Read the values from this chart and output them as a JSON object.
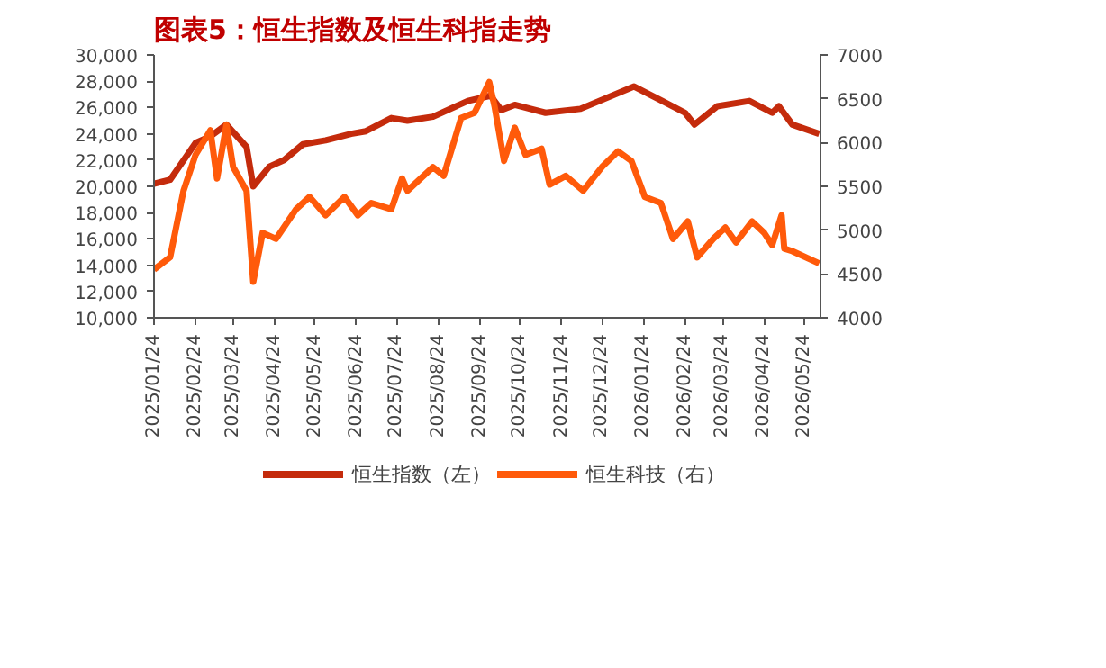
{
  "chart_data": {
    "type": "line",
    "title": "图表5：恒生指数及恒生科指走势",
    "x": [
      "2025-01-24",
      "2025-02-05",
      "2025-02-24",
      "2025-03-07",
      "2025-03-19",
      "2025-04-03",
      "2025-04-08",
      "2025-04-20",
      "2025-05-01",
      "2025-05-15",
      "2025-06-01",
      "2025-06-20",
      "2025-07-01",
      "2025-07-20",
      "2025-08-01",
      "2025-08-20",
      "2025-09-15",
      "2025-10-02",
      "2025-10-10",
      "2025-10-20",
      "2025-11-12",
      "2025-12-08",
      "2026-01-17",
      "2026-02-07",
      "2026-02-24",
      "2026-03-03",
      "2026-03-20",
      "2026-04-13",
      "2026-04-30",
      "2026-05-05",
      "2026-05-15",
      "2026-06-04"
    ],
    "series": [
      {
        "name": "恒生指数（左）",
        "color": "#c42b0c",
        "values": [
          20200,
          20500,
          23300,
          23800,
          24700,
          23000,
          20000,
          21500,
          22000,
          23200,
          23500,
          24000,
          24200,
          25200,
          25000,
          25300,
          26500,
          26900,
          25800,
          26200,
          25600,
          25900,
          27600,
          26500,
          25600,
          24700,
          26100,
          26500,
          25600,
          26100,
          24700,
          24000
        ]
      },
      {
        "name": "恒生科技（右）",
        "color": "#ff5a0a",
        "axis": "y2",
        "x": [
          "2025-01-24",
          "2025-02-05",
          "2025-02-15",
          "2025-02-24",
          "2025-03-07",
          "2025-03-12",
          "2025-03-19",
          "2025-03-24",
          "2025-04-03",
          "2025-04-08",
          "2025-04-15",
          "2025-04-25",
          "2025-05-10",
          "2025-05-20",
          "2025-06-01",
          "2025-06-15",
          "2025-06-25",
          "2025-07-05",
          "2025-07-20",
          "2025-07-28",
          "2025-08-01",
          "2025-08-20",
          "2025-08-28",
          "2025-09-10",
          "2025-09-20",
          "2025-10-01",
          "2025-10-05",
          "2025-10-12",
          "2025-10-20",
          "2025-10-28",
          "2025-11-09",
          "2025-11-15",
          "2025-11-27",
          "2025-12-10",
          "2025-12-24",
          "2026-01-05",
          "2026-01-15",
          "2026-01-25",
          "2026-02-06",
          "2026-02-15",
          "2026-02-26",
          "2026-03-05",
          "2026-03-17",
          "2026-03-26",
          "2026-04-03",
          "2026-04-15",
          "2026-04-24",
          "2026-04-30",
          "2026-05-07",
          "2026-05-09",
          "2026-05-15",
          "2026-06-04"
        ],
        "values": [
          4550,
          4690,
          5450,
          5860,
          6140,
          5590,
          6200,
          5720,
          5450,
          4410,
          4970,
          4900,
          5240,
          5380,
          5170,
          5380,
          5170,
          5310,
          5240,
          5590,
          5450,
          5720,
          5620,
          6280,
          6340,
          6690,
          6410,
          5790,
          6170,
          5860,
          5930,
          5520,
          5620,
          5450,
          5720,
          5900,
          5790,
          5380,
          5310,
          4900,
          5100,
          4690,
          4900,
          5030,
          4860,
          5100,
          4970,
          4830,
          5170,
          4790,
          4760,
          4620
        ]
      }
    ],
    "xlim": [
      "2025-01-24",
      "2026-06-05"
    ],
    "xticks": [
      {
        "value": "2025-01-24",
        "label": "2025/01/24"
      },
      {
        "value": "2025-02-24",
        "label": "2025/02/24"
      },
      {
        "value": "2025-03-24",
        "label": "2025/03/24"
      },
      {
        "value": "2025-04-24",
        "label": "2025/04/24"
      },
      {
        "value": "2025-05-24",
        "label": "2025/05/24"
      },
      {
        "value": "2025-06-24",
        "label": "2025/06/24"
      },
      {
        "value": "2025-07-24",
        "label": "2025/07/24"
      },
      {
        "value": "2025-08-24",
        "label": "2025/08/24"
      },
      {
        "value": "2025-09-24",
        "label": "2025/09/24"
      },
      {
        "value": "2025-10-24",
        "label": "2025/10/24"
      },
      {
        "value": "2025-11-24",
        "label": "2025/11/24"
      },
      {
        "value": "2025-12-24",
        "label": "2025/12/24"
      },
      {
        "value": "2026-01-24",
        "label": "2026/01/24"
      },
      {
        "value": "2026-02-24",
        "label": "2026/02/24"
      },
      {
        "value": "2026-03-24",
        "label": "2026/03/24"
      },
      {
        "value": "2026-04-24",
        "label": "2026/04/24"
      },
      {
        "value": "2026-05-24",
        "label": "2026/05/24"
      }
    ],
    "ylim": [
      10000,
      30000
    ],
    "yticks": [
      {
        "value": 10000,
        "label": "10,000"
      },
      {
        "value": 12000,
        "label": "12,000"
      },
      {
        "value": 14000,
        "label": "14,000"
      },
      {
        "value": 16000,
        "label": "16,000"
      },
      {
        "value": 18000,
        "label": "18,000"
      },
      {
        "value": 20000,
        "label": "20,000"
      },
      {
        "value": 22000,
        "label": "22,000"
      },
      {
        "value": 24000,
        "label": "24,000"
      },
      {
        "value": 26000,
        "label": "26,000"
      },
      {
        "value": 28000,
        "label": "28,000"
      },
      {
        "value": 30000,
        "label": "30,000"
      }
    ],
    "y2lim": [
      4000,
      7000
    ],
    "y2ticks": [
      4000,
      4500,
      5000,
      5500,
      6000,
      6500,
      7000
    ],
    "legend": "bottom"
  }
}
